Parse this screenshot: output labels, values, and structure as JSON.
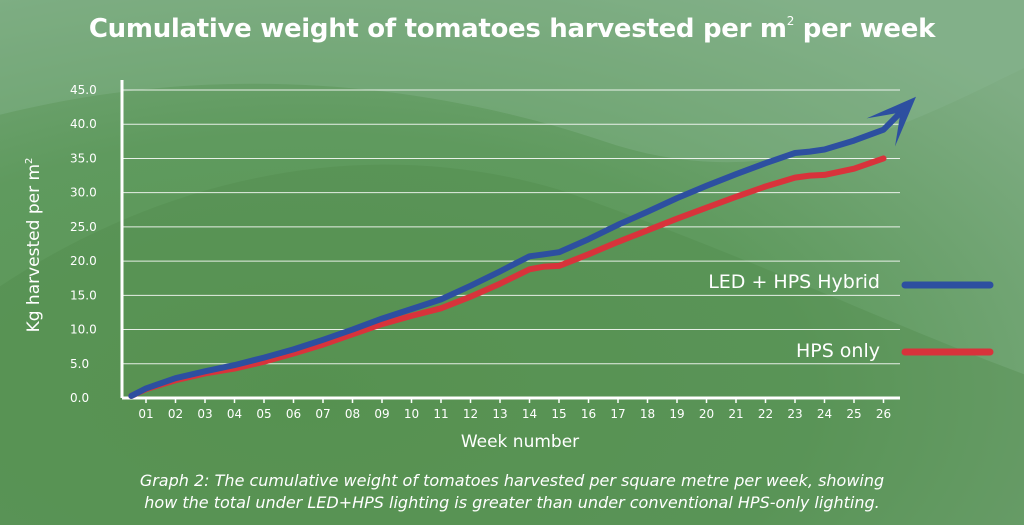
{
  "chart_data": {
    "type": "line",
    "title": "Cumulative weight of tomatoes harvested per m",
    "title_superscript": "2",
    "title_suffix": " per week",
    "xlabel": "Week number",
    "ylabel": "Kg harvested per m",
    "ylabel_superscript": "2",
    "categories": [
      "01",
      "02",
      "03",
      "04",
      "05",
      "06",
      "07",
      "08",
      "09",
      "10",
      "11",
      "12",
      "13",
      "14",
      "15",
      "16",
      "17",
      "18",
      "19",
      "20",
      "21",
      "22",
      "23",
      "24",
      "25",
      "26"
    ],
    "y_ticks": [
      "0.0",
      "5.0",
      "10.0",
      "15.0",
      "20.0",
      "25.0",
      "30.0",
      "35.0",
      "40.0",
      "45.0"
    ],
    "ylim": [
      0,
      45
    ],
    "grid": true,
    "legend_position": "right",
    "series": [
      {
        "name": "LED + HPS Hybrid",
        "color": "#2d4fa0",
        "arrow": true,
        "x": [
          0.5,
          1,
          2,
          3,
          4,
          5,
          6,
          7,
          8,
          9,
          10,
          11,
          12,
          13,
          14,
          14.5,
          15,
          16,
          17,
          18,
          19,
          20,
          21,
          22,
          23,
          23.5,
          24,
          25,
          26,
          27.1
        ],
        "values": [
          0.3,
          1.4,
          2.9,
          3.9,
          4.8,
          5.9,
          7.1,
          8.5,
          10.0,
          11.6,
          13.0,
          14.4,
          16.4,
          18.5,
          20.7,
          21.0,
          21.3,
          23.2,
          25.3,
          27.2,
          29.2,
          31.0,
          32.7,
          34.3,
          35.8,
          36.0,
          36.3,
          37.6,
          39.2,
          44.0
        ]
      },
      {
        "name": "HPS only",
        "color": "#d8333b",
        "arrow": false,
        "x": [
          0.5,
          1,
          2,
          3,
          4,
          5,
          6,
          7,
          8,
          9,
          10,
          11,
          12,
          13,
          14,
          14.5,
          15,
          16,
          17,
          18,
          19,
          20,
          21,
          22,
          23,
          23.5,
          24,
          25,
          26
        ],
        "values": [
          0.3,
          1.3,
          2.6,
          3.6,
          4.3,
          5.3,
          6.5,
          7.8,
          9.3,
          10.8,
          12.0,
          13.1,
          14.8,
          16.7,
          18.8,
          19.2,
          19.3,
          21.0,
          22.8,
          24.5,
          26.2,
          27.8,
          29.4,
          30.9,
          32.2,
          32.5,
          32.6,
          33.5,
          35.0
        ]
      }
    ]
  },
  "caption_line1": "Graph 2: The cumulative weight of tomatoes harvested per square metre per week, showing",
  "caption_line2": "how the total under LED+HPS lighting is greater than under conventional HPS-only lighting."
}
